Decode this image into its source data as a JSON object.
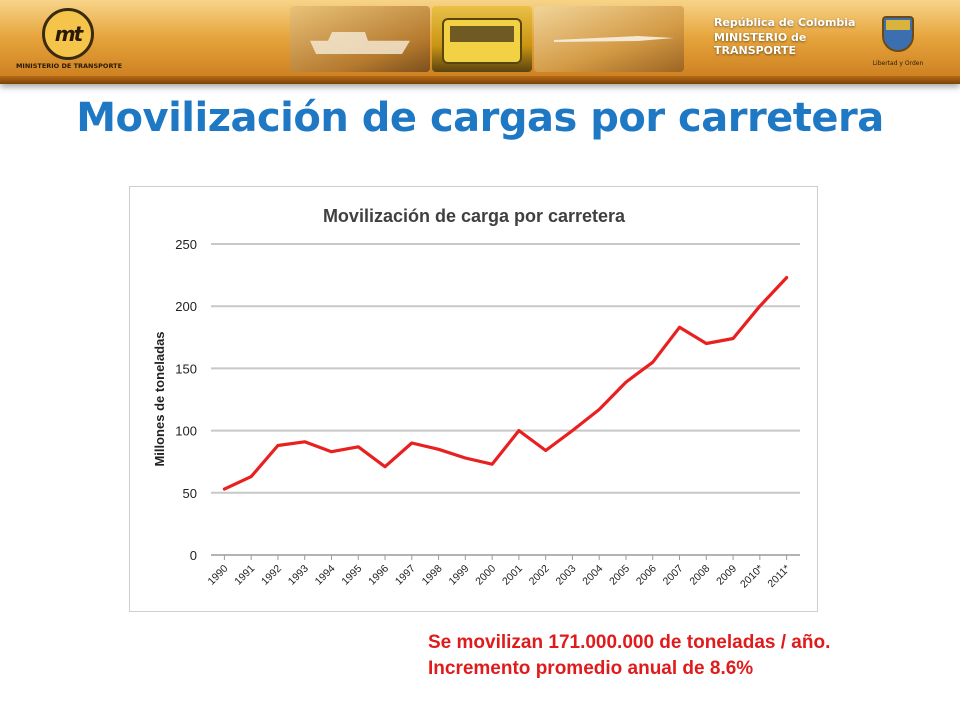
{
  "header": {
    "logo_text": "mt",
    "logo_caption": "MINISTERIO DE TRANSPORTE",
    "gov_line1": "República de Colombia",
    "gov_line2": "MINISTERIO de TRANSPORTE",
    "emblem_caption": "Libertad y Orden"
  },
  "page_title": "Movilización de cargas por carretera",
  "chart_data": {
    "type": "line",
    "title": "Movilización de carga por carretera",
    "xlabel": "",
    "ylabel": "Millones de toneladas",
    "ylim": [
      0,
      250
    ],
    "yticks": [
      0,
      50,
      100,
      150,
      200,
      250
    ],
    "grid": true,
    "line_color": "#e8201f",
    "categories": [
      "1990",
      "1991",
      "1992",
      "1993",
      "1994",
      "1995",
      "1996",
      "1997",
      "1998",
      "1999",
      "2000",
      "2001",
      "2002",
      "2003",
      "2004",
      "2005",
      "2006",
      "2007",
      "2008",
      "2009",
      "2010*",
      "2011*"
    ],
    "series": [
      {
        "values": [
          53,
          63,
          88,
          91,
          83,
          87,
          71,
          90,
          85,
          78,
          73,
          100,
          84,
          100,
          117,
          139,
          155,
          183,
          170,
          174,
          200,
          223
        ]
      }
    ]
  },
  "notes": {
    "line1": "Se movilizan 171.000.000 de toneladas / año.",
    "line2": "Incremento promedio anual de 8.6%"
  }
}
